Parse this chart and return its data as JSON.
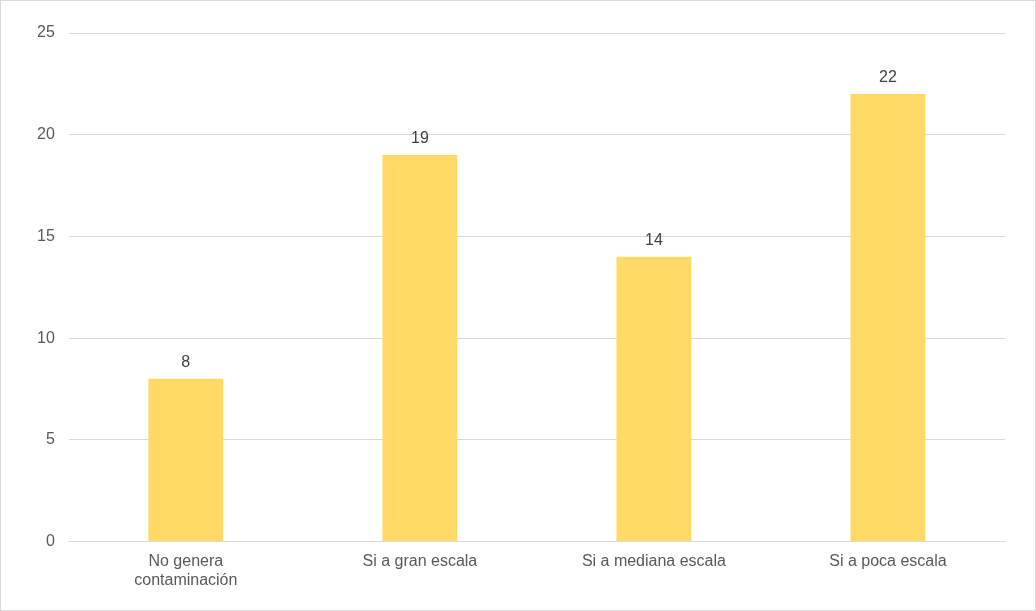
{
  "chart_data": {
    "type": "bar",
    "categories": [
      "No genera contaminación",
      "Si a gran escala",
      "Si a mediana escala",
      "Si a poca escala"
    ],
    "values": [
      8,
      19,
      14,
      22
    ],
    "color": "#ffd966",
    "ylim": [
      0,
      25
    ],
    "yticks": [
      0,
      5,
      10,
      15,
      20,
      25
    ],
    "grid": "y",
    "legend": false,
    "data_labels": true
  }
}
